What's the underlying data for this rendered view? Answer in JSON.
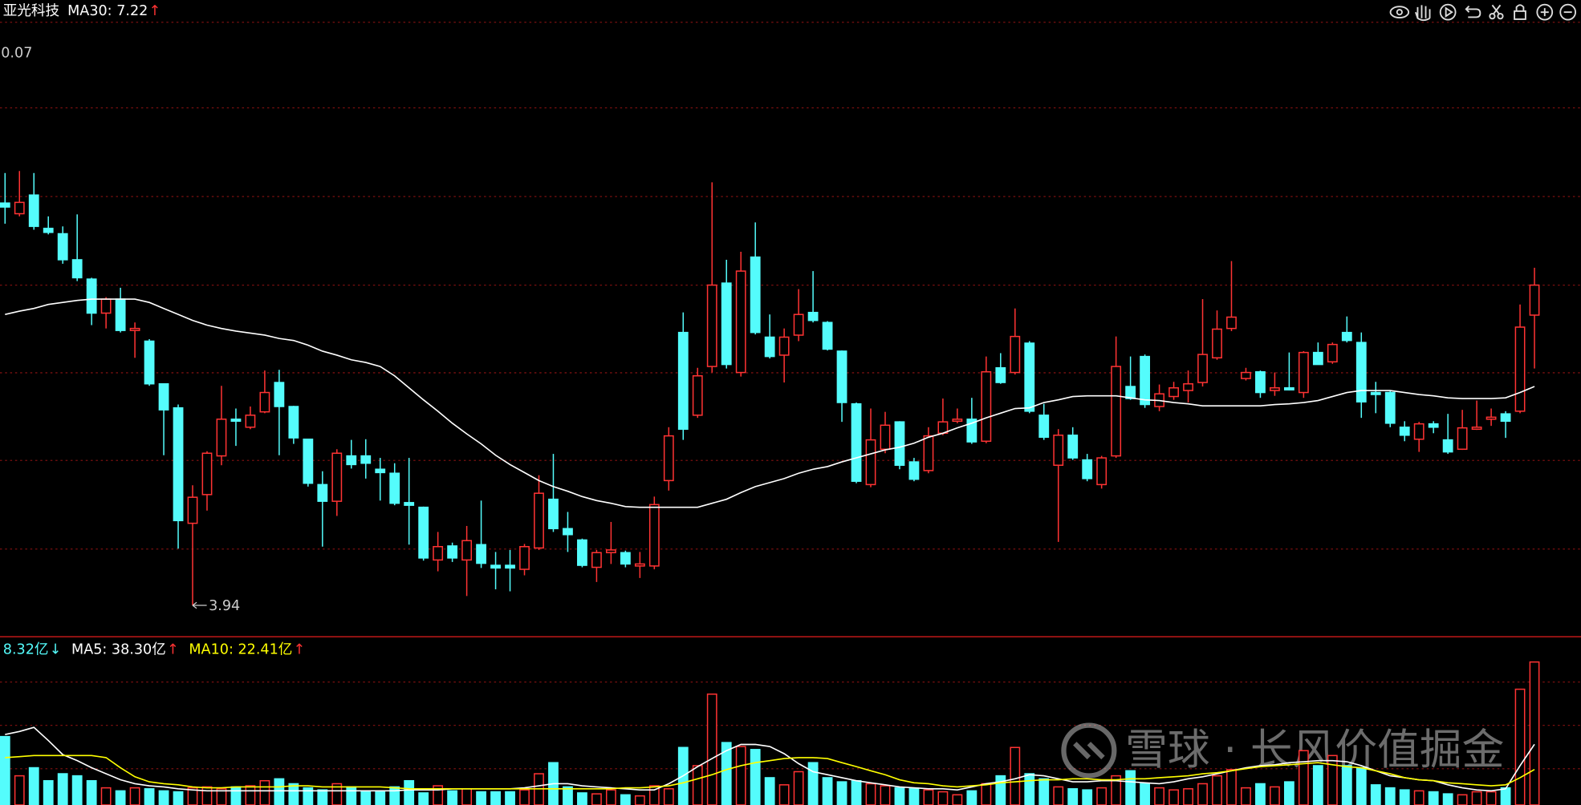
{
  "chart_data": [
    {
      "type": "candlestick",
      "title": "亚光科技",
      "legend": [
        {
          "text": "MA30: 7.22",
          "arrow": "↑",
          "color": "#ffffff",
          "arrow_color": "#ff3333"
        }
      ],
      "axis_label": "0.07",
      "up_color": "#ff3333",
      "down_color": "#54fcfc",
      "ylim": [
        3.5,
        12.68
      ],
      "open": [
        9.97,
        9.81,
        10.09,
        9.59,
        9.51,
        9.12,
        8.83,
        8.32,
        8.53,
        8.06,
        7.9,
        7.26,
        6.9,
        5.17,
        5.6,
        6.18,
        6.73,
        6.61,
        6.84,
        7.28,
        6.92,
        6.43,
        5.75,
        5.5,
        6.18,
        6.18,
        5.98,
        5.92,
        5.48,
        5.41,
        4.62,
        4.83,
        4.62,
        4.85,
        4.54,
        4.54,
        4.48,
        4.8,
        5.53,
        5.09,
        4.92,
        4.51,
        4.73,
        4.73,
        4.53,
        4.53,
        5.81,
        8.03,
        6.79,
        7.52,
        8.77,
        7.43,
        9.16,
        7.96,
        7.69,
        7.99,
        8.33,
        8.18,
        7.75,
        6.96,
        5.75,
        6.28,
        6.69,
        6.09,
        5.96,
        6.52,
        6.7,
        6.73,
        6.4,
        7.5,
        7.43,
        7.87,
        6.79,
        6.04,
        6.49,
        6.12,
        5.75,
        6.18,
        7.22,
        7.67,
        6.92,
        7.07,
        7.16,
        7.28,
        7.65,
        8.09,
        7.34,
        7.44,
        7.16,
        7.2,
        7.13,
        7.73,
        7.59,
        8.03,
        7.88,
        7.13,
        7.13,
        6.61,
        6.43,
        6.66,
        6.42,
        6.28,
        6.58,
        6.73,
        6.81,
        6.85,
        8.29
      ],
      "close": [
        9.91,
        9.98,
        9.62,
        9.53,
        9.12,
        8.85,
        8.32,
        8.53,
        8.06,
        8.09,
        7.26,
        6.87,
        5.21,
        5.56,
        6.22,
        6.73,
        6.7,
        6.79,
        7.13,
        6.92,
        6.45,
        5.77,
        5.5,
        6.22,
        6.05,
        6.07,
        5.93,
        5.47,
        5.44,
        4.65,
        4.82,
        4.65,
        4.91,
        4.57,
        4.5,
        4.5,
        4.82,
        5.62,
        5.09,
        5.0,
        4.54,
        4.73,
        4.77,
        4.56,
        4.56,
        5.45,
        6.48,
        6.58,
        7.38,
        8.74,
        7.55,
        8.95,
        8.03,
        7.67,
        7.96,
        8.3,
        8.21,
        7.78,
        6.98,
        5.8,
        6.42,
        6.64,
        6.04,
        5.83,
        6.48,
        6.69,
        6.73,
        6.39,
        7.44,
        7.28,
        7.97,
        6.85,
        6.46,
        6.49,
        6.15,
        5.84,
        6.15,
        7.52,
        7.04,
        6.95,
        7.11,
        7.2,
        7.26,
        7.7,
        8.08,
        8.26,
        7.43,
        7.13,
        7.2,
        7.17,
        7.73,
        7.55,
        7.85,
        7.91,
        6.99,
        7.1,
        6.67,
        6.49,
        6.66,
        6.61,
        6.24,
        6.6,
        6.61,
        6.76,
        6.7,
        8.11,
        8.74
      ],
      "high": [
        10.42,
        10.45,
        10.42,
        9.77,
        9.62,
        9.8,
        8.85,
        8.56,
        8.7,
        8.18,
        7.93,
        7.26,
        6.95,
        5.74,
        6.25,
        7.23,
        6.89,
        6.92,
        7.46,
        7.47,
        6.93,
        6.43,
        5.95,
        6.28,
        6.42,
        6.43,
        6.15,
        6.07,
        6.15,
        5.42,
        5.04,
        4.88,
        5.13,
        5.51,
        4.74,
        4.77,
        4.86,
        5.89,
        6.21,
        5.34,
        4.94,
        4.77,
        5.19,
        4.76,
        4.74,
        5.57,
        6.61,
        8.33,
        7.5,
        10.28,
        9.12,
        9.24,
        9.68,
        8.3,
        8.09,
        8.68,
        8.95,
        8.2,
        7.76,
        6.98,
        6.89,
        6.84,
        6.7,
        6.15,
        6.61,
        7.04,
        6.89,
        7.05,
        7.67,
        7.72,
        8.39,
        7.9,
        6.96,
        6.58,
        6.61,
        6.21,
        6.18,
        7.97,
        7.67,
        7.7,
        7.25,
        7.29,
        7.46,
        8.53,
        8.36,
        9.1,
        7.5,
        7.46,
        7.43,
        7.73,
        7.75,
        7.88,
        7.88,
        8.27,
        8.03,
        7.29,
        7.16,
        6.7,
        6.69,
        6.7,
        6.81,
        6.87,
        7.01,
        6.89,
        6.85,
        8.45,
        9.0
      ],
      "low": [
        9.66,
        9.77,
        9.57,
        9.5,
        9.06,
        8.8,
        8.14,
        8.09,
        8.03,
        7.65,
        7.23,
        6.19,
        4.79,
        3.94,
        5.36,
        6.04,
        6.33,
        6.58,
        6.82,
        6.19,
        6.36,
        5.72,
        4.82,
        5.28,
        5.99,
        5.84,
        5.51,
        5.44,
        4.85,
        4.61,
        4.45,
        4.59,
        4.08,
        4.5,
        4.18,
        4.15,
        4.39,
        4.77,
        5.04,
        4.74,
        4.51,
        4.29,
        4.56,
        4.51,
        4.35,
        4.48,
        5.66,
        6.42,
        6.75,
        7.43,
        7.49,
        7.37,
        8.0,
        7.64,
        7.28,
        7.9,
        8.18,
        7.76,
        6.69,
        5.77,
        5.71,
        6.22,
        5.98,
        5.8,
        5.92,
        6.49,
        6.67,
        6.36,
        6.37,
        7.26,
        7.4,
        6.82,
        6.42,
        4.89,
        6.12,
        5.8,
        5.69,
        6.15,
        7.02,
        6.9,
        6.85,
        7.02,
        6.98,
        7.22,
        7.62,
        8.05,
        7.31,
        7.05,
        7.08,
        7.16,
        7.05,
        7.55,
        7.56,
        7.88,
        6.75,
        6.82,
        6.61,
        6.4,
        6.24,
        6.52,
        6.21,
        6.27,
        6.57,
        6.63,
        6.45,
        6.82,
        7.49
      ],
      "lines": [
        {
          "color": "#ffffff",
          "values": [
            8.3,
            8.35,
            8.39,
            8.45,
            8.48,
            8.51,
            8.53,
            8.53,
            8.53,
            8.53,
            8.48,
            8.39,
            8.3,
            8.21,
            8.14,
            8.09,
            8.05,
            8.02,
            7.99,
            7.94,
            7.91,
            7.84,
            7.75,
            7.69,
            7.62,
            7.58,
            7.52,
            7.38,
            7.2,
            7.02,
            6.85,
            6.67,
            6.51,
            6.36,
            6.19,
            6.05,
            5.93,
            5.81,
            5.72,
            5.65,
            5.57,
            5.51,
            5.47,
            5.42,
            5.41,
            5.41,
            5.41,
            5.41,
            5.41,
            5.47,
            5.53,
            5.63,
            5.72,
            5.78,
            5.84,
            5.92,
            5.98,
            6.02,
            6.09,
            6.15,
            6.21,
            6.27,
            6.31,
            6.37,
            6.46,
            6.52,
            6.6,
            6.67,
            6.75,
            6.82,
            6.89,
            6.9,
            6.98,
            7.02,
            7.07,
            7.08,
            7.08,
            7.08,
            7.05,
            7.02,
            7.01,
            6.98,
            6.96,
            6.93,
            6.93,
            6.93,
            6.93,
            6.93,
            6.95,
            6.96,
            6.98,
            7.01,
            7.07,
            7.13,
            7.16,
            7.16,
            7.16,
            7.13,
            7.1,
            7.08,
            7.05,
            7.04,
            7.04,
            7.04,
            7.05,
            7.13,
            7.22
          ]
        }
      ]
    },
    {
      "type": "bar",
      "legend": [
        {
          "text": "8.32亿",
          "arrow": "↓",
          "color": "#54fcfc",
          "arrow_color": "#54fcfc"
        },
        {
          "text": "MA5: 38.30亿",
          "arrow": "↑",
          "color": "#ffffff",
          "arrow_color": "#ff3333"
        },
        {
          "text": "MA10: 22.41亿",
          "arrow": "↑",
          "color": "#ffff00",
          "arrow_color": "#ff3333"
        }
      ],
      "ylim": [
        0,
        105
      ],
      "values": [
        43.2,
        18.4,
        23.5,
        15.3,
        19.7,
        18.4,
        15.3,
        10.8,
        8.9,
        10.8,
        10.2,
        8.9,
        8.3,
        10.8,
        11.4,
        10.2,
        11.4,
        12.1,
        15.3,
        16.5,
        13.4,
        10.8,
        9.5,
        13.4,
        11.4,
        8.3,
        8.9,
        11.4,
        15.3,
        7.6,
        12.1,
        8.9,
        10.2,
        8.3,
        8.3,
        8.3,
        9.5,
        19.7,
        26.7,
        11.4,
        7.6,
        7.0,
        9.5,
        6.4,
        5.7,
        12.1,
        10.2,
        36.3,
        24.8,
        70.0,
        39.4,
        36.9,
        35.0,
        17.2,
        12.7,
        21.0,
        26.7,
        17.2,
        14.6,
        15.3,
        13.4,
        12.1,
        10.8,
        10.2,
        9.5,
        8.3,
        6.4,
        8.9,
        13.4,
        18.4,
        36.3,
        19.7,
        16.5,
        11.4,
        10.2,
        9.5,
        10.8,
        18.4,
        21.6,
        13.4,
        10.8,
        9.5,
        10.2,
        13.4,
        18.4,
        22.3,
        10.8,
        13.4,
        11.4,
        14.6,
        34.3,
        24.8,
        31.2,
        24.8,
        23.5,
        12.7,
        10.8,
        9.5,
        8.9,
        8.3,
        7.0,
        6.4,
        8.3,
        8.3,
        10.8,
        73.1,
        90.3
      ],
      "lines": [
        {
          "color": "#ffffff",
          "values": [
            44.5,
            46.4,
            49.0,
            40.7,
            31.8,
            28.0,
            23.5,
            19.7,
            15.9,
            13.4,
            12.1,
            11.4,
            10.2,
            9.5,
            8.9,
            8.9,
            8.9,
            8.9,
            8.9,
            8.9,
            8.9,
            8.9,
            8.9,
            8.9,
            8.9,
            8.9,
            8.9,
            8.9,
            9.5,
            9.5,
            9.5,
            10.2,
            10.2,
            10.2,
            10.2,
            10.2,
            10.8,
            12.1,
            13.4,
            13.4,
            12.1,
            11.4,
            10.8,
            10.2,
            9.5,
            9.5,
            13.4,
            18.4,
            24.2,
            29.3,
            34.3,
            38.2,
            38.2,
            36.9,
            32.4,
            26.1,
            21.0,
            19.1,
            17.2,
            15.3,
            14.0,
            12.7,
            11.4,
            10.8,
            10.2,
            10.2,
            9.5,
            11.4,
            13.4,
            14.6,
            16.5,
            19.1,
            18.4,
            16.5,
            14.6,
            14.6,
            15.3,
            15.3,
            14.6,
            14.0,
            13.4,
            14.6,
            16.5,
            17.8,
            19.7,
            21.6,
            23.5,
            24.8,
            25.4,
            26.7,
            27.3,
            28.0,
            28.0,
            27.3,
            24.8,
            21.6,
            18.4,
            17.2,
            15.9,
            15.3,
            12.7,
            10.8,
            9.5,
            8.9,
            10.2,
            24.8,
            38.3
          ]
        },
        {
          "color": "#ffff00",
          "values": [
            29.9,
            30.5,
            31.2,
            31.2,
            31.2,
            31.2,
            31.2,
            29.9,
            23.5,
            17.8,
            14.6,
            13.4,
            12.7,
            11.4,
            10.8,
            10.8,
            11.4,
            11.4,
            11.4,
            11.4,
            12.1,
            12.1,
            11.4,
            11.4,
            11.4,
            11.4,
            11.4,
            10.8,
            10.2,
            10.2,
            10.2,
            10.2,
            10.2,
            10.2,
            10.2,
            10.2,
            10.2,
            10.2,
            10.2,
            10.2,
            10.2,
            10.2,
            10.2,
            10.8,
            10.8,
            11.4,
            12.1,
            14.0,
            16.5,
            19.1,
            22.3,
            24.8,
            26.7,
            28.0,
            29.3,
            29.9,
            29.9,
            29.3,
            26.7,
            24.2,
            21.6,
            19.1,
            15.9,
            14.0,
            13.4,
            12.1,
            11.4,
            12.1,
            12.7,
            14.0,
            14.6,
            15.3,
            15.9,
            15.9,
            16.5,
            16.5,
            15.9,
            15.9,
            16.5,
            16.5,
            17.2,
            17.8,
            18.4,
            19.7,
            20.4,
            21.6,
            22.9,
            24.2,
            24.8,
            25.4,
            26.1,
            26.7,
            25.4,
            24.2,
            23.5,
            21.6,
            19.7,
            17.2,
            15.9,
            15.3,
            14.0,
            13.4,
            12.7,
            12.1,
            12.7,
            17.2,
            22.41
          ]
        }
      ]
    }
  ],
  "watermark": "雪球 · 长风价值掘金"
}
